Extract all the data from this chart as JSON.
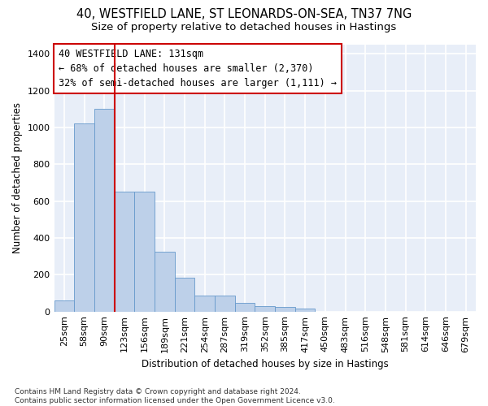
{
  "title1": "40, WESTFIELD LANE, ST LEONARDS-ON-SEA, TN37 7NG",
  "title2": "Size of property relative to detached houses in Hastings",
  "xlabel": "Distribution of detached houses by size in Hastings",
  "ylabel": "Number of detached properties",
  "categories": [
    "25sqm",
    "58sqm",
    "90sqm",
    "123sqm",
    "156sqm",
    "189sqm",
    "221sqm",
    "254sqm",
    "287sqm",
    "319sqm",
    "352sqm",
    "385sqm",
    "417sqm",
    "450sqm",
    "483sqm",
    "516sqm",
    "548sqm",
    "581sqm",
    "614sqm",
    "646sqm",
    "679sqm"
  ],
  "values": [
    62,
    1020,
    1100,
    650,
    650,
    325,
    185,
    88,
    88,
    45,
    28,
    25,
    18,
    0,
    0,
    0,
    0,
    0,
    0,
    0,
    0
  ],
  "bar_color": "#bdd0e9",
  "bar_edge_color": "#6699cc",
  "vline_index": 2.5,
  "vline_color": "#cc0000",
  "annotation_text": "40 WESTFIELD LANE: 131sqm\n← 68% of detached houses are smaller (2,370)\n32% of semi-detached houses are larger (1,111) →",
  "annotation_box_color": "white",
  "annotation_box_edge_color": "#cc0000",
  "ylim": [
    0,
    1450
  ],
  "yticks": [
    0,
    200,
    400,
    600,
    800,
    1000,
    1200,
    1400
  ],
  "footer": "Contains HM Land Registry data © Crown copyright and database right 2024.\nContains public sector information licensed under the Open Government Licence v3.0.",
  "bg_color": "#e8eef8",
  "grid_color": "#ffffff",
  "title1_fontsize": 10.5,
  "title2_fontsize": 9.5,
  "xlabel_fontsize": 8.5,
  "ylabel_fontsize": 8.5,
  "annotation_fontsize": 8.5,
  "tick_fontsize": 8,
  "footer_fontsize": 6.5
}
